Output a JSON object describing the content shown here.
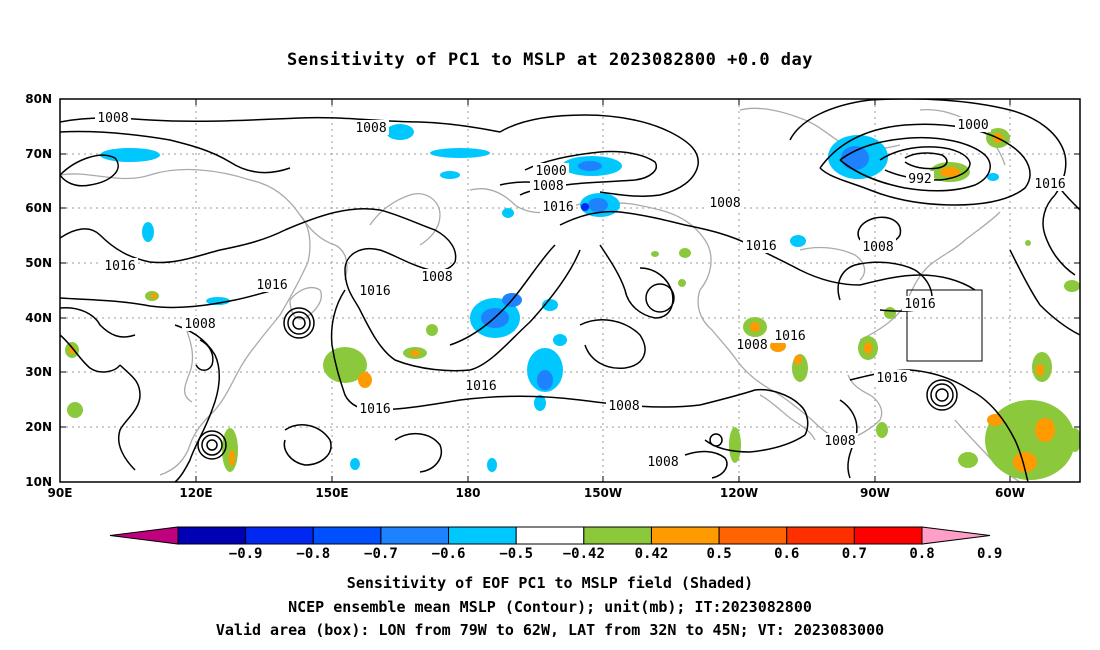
{
  "title": "Sensitivity of PC1 to MSLP at 2023082800 +0.0 day",
  "lat_labels": [
    "80N",
    "70N",
    "60N",
    "50N",
    "40N",
    "30N",
    "20N",
    "10N"
  ],
  "lon_labels": [
    "90E",
    "120E",
    "150E",
    "180",
    "150W",
    "120W",
    "90W",
    "60W"
  ],
  "contour_labels": [
    "1008",
    "1008",
    "1000",
    "1008",
    "1016",
    "1008",
    "1016",
    "1008",
    "1000",
    "992",
    "1016",
    "1016",
    "1016",
    "1008",
    "1016",
    "1008",
    "1016",
    "1016",
    "1008",
    "1016",
    "1008",
    "1016",
    "1016",
    "1008",
    "1008",
    "1016"
  ],
  "colorbar": {
    "colors": [
      "#c0007f",
      "#0000b4",
      "#0028f0",
      "#0050ff",
      "#1e82ff",
      "#00c8ff",
      "#ffffff",
      "#8cc83c",
      "#ff9a00",
      "#ff6400",
      "#ff3000",
      "#ff0000",
      "#ff9fc8"
    ],
    "labels": [
      "−0.9",
      "−0.8",
      "−0.7",
      "−0.6",
      "−0.5",
      "−0.42",
      "0.42",
      "0.5",
      "0.6",
      "0.7",
      "0.8",
      "0.9"
    ]
  },
  "caption": {
    "line1": "Sensitivity of EOF PC1 to MSLP field (Shaded)",
    "line2": "NCEP ensemble mean MSLP (Contour); unit(mb); IT:2023082800",
    "line3": "Valid area (box): LON from 79W to 62W, LAT from 32N to 45N; VT: 2023083000"
  }
}
